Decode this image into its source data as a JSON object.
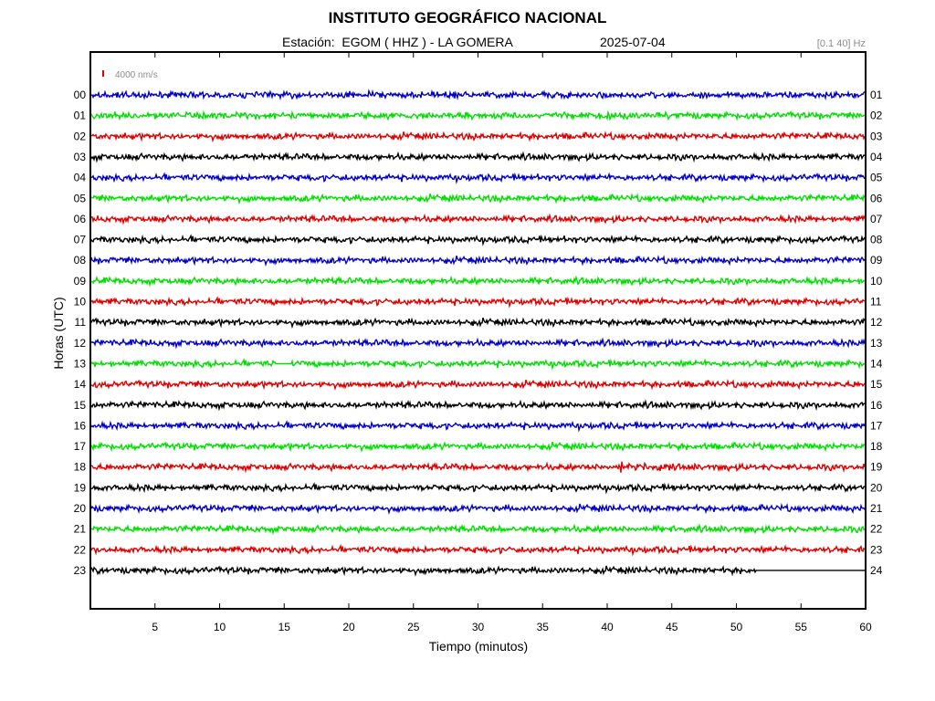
{
  "header": {
    "title": "INSTITUTO GEOGRÁFICO NACIONAL",
    "station": "Estación:  EGOM ( HHZ ) - LA GOMERA",
    "date": "2025-07-04",
    "filter": "[0.1 40] Hz"
  },
  "chart_data": {
    "type": "line",
    "title": "INSTITUTO GEOGRÁFICO NACIONAL",
    "xlabel": "Tiempo (minutos)",
    "ylabel": "Horas (UTC)",
    "xlim": [
      0,
      60
    ],
    "x_ticks": [
      "5",
      "10",
      "15",
      "20",
      "25",
      "30",
      "35",
      "40",
      "45",
      "50",
      "55",
      "60"
    ],
    "left_hour_labels": [
      "00",
      "01",
      "02",
      "03",
      "04",
      "05",
      "06",
      "07",
      "08",
      "09",
      "10",
      "11",
      "12",
      "13",
      "14",
      "15",
      "16",
      "17",
      "18",
      "19",
      "20",
      "21",
      "22",
      "23"
    ],
    "right_hour_labels": [
      "01",
      "02",
      "03",
      "04",
      "05",
      "06",
      "07",
      "08",
      "09",
      "10",
      "11",
      "12",
      "13",
      "14",
      "15",
      "16",
      "17",
      "18",
      "19",
      "20",
      "21",
      "22",
      "23",
      "24"
    ],
    "scale_bar": {
      "label": "4000 nm/s",
      "color": "#e00000"
    },
    "trace_colors": [
      "#0000c8",
      "#00e000",
      "#e00000",
      "#000000"
    ],
    "events": [
      {
        "hour": 13,
        "type": "data gap",
        "start_min": 14.3,
        "end_min": 15.6
      },
      {
        "hour": 18,
        "type": "small spike",
        "minute": 41.1
      },
      {
        "hour": 23,
        "type": "data ends",
        "minute": 51.5
      }
    ],
    "grid": false
  }
}
